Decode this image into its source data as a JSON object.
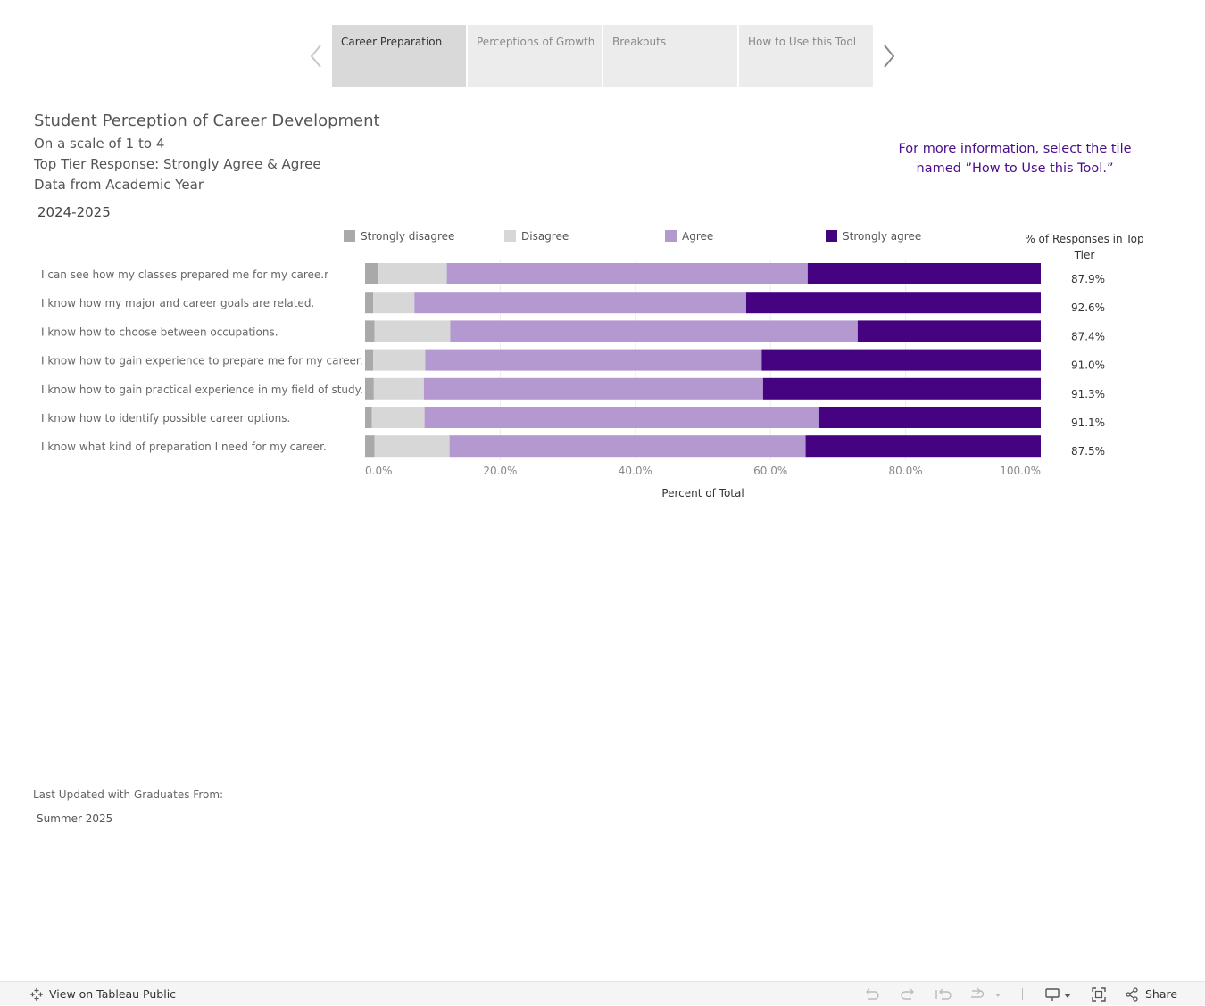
{
  "tabs": {
    "items": [
      {
        "label": "Career Preparation",
        "active": true
      },
      {
        "label": "Perceptions of Growth",
        "active": false
      },
      {
        "label": "Breakouts",
        "active": false
      },
      {
        "label": "How to Use this Tool",
        "active": false
      }
    ]
  },
  "header": {
    "title": "Student Perception of Career Development",
    "scale": "On a scale of 1 to 4",
    "top_tier": "Top Tier Response: Strongly Agree & Agree",
    "data_from": "Data from Academic Year",
    "year": "2024-2025",
    "info_note_line1": "For more information, select the tile",
    "info_note_line2": "named ”How to Use this Tool.”"
  },
  "chart_data": {
    "type": "bar",
    "orientation": "horizontal",
    "stacked": true,
    "categories": [
      "I can see how my classes prepared me for my caree.r",
      "I know how my major and career goals are related.",
      "I know how to choose between occupations.",
      "I know how to gain experience to prepare me for my career.",
      "I know how to gain practical experience in my field of study.",
      "I know how to identify possible career options.",
      "I know what kind of preparation I need for my career."
    ],
    "series": [
      {
        "name": "Strongly disagree",
        "color": "#a9a9a9",
        "values": [
          2.0,
          1.2,
          1.4,
          1.2,
          1.3,
          1.0,
          1.4
        ]
      },
      {
        "name": "Disagree",
        "color": "#d7d7d7",
        "values": [
          10.1,
          6.1,
          11.2,
          7.7,
          7.4,
          7.8,
          11.1
        ]
      },
      {
        "name": "Agree",
        "color": "#b498d0",
        "values": [
          53.4,
          49.1,
          60.3,
          49.8,
          50.2,
          58.3,
          52.7
        ]
      },
      {
        "name": "Strongly agree",
        "color": "#450381",
        "values": [
          34.5,
          43.6,
          27.1,
          41.3,
          41.1,
          32.9,
          34.8
        ]
      }
    ],
    "top_tier_header": "% of Responses in Top Tier",
    "top_tier_values": [
      "87.9%",
      "92.6%",
      "87.4%",
      "91.0%",
      "91.3%",
      "91.1%",
      "87.5%"
    ],
    "xlabel": "Percent of Total",
    "xlim": [
      0,
      100
    ],
    "xticks": [
      "0.0%",
      "20.0%",
      "40.0%",
      "60.0%",
      "80.0%",
      "100.0%"
    ],
    "grid": true,
    "legend_position": "top"
  },
  "footer": {
    "updated_label": "Last Updated with Graduates From:",
    "updated_value": "Summer 2025"
  },
  "toolbar": {
    "view_on_label": "View on Tableau Public",
    "share_label": "Share"
  }
}
